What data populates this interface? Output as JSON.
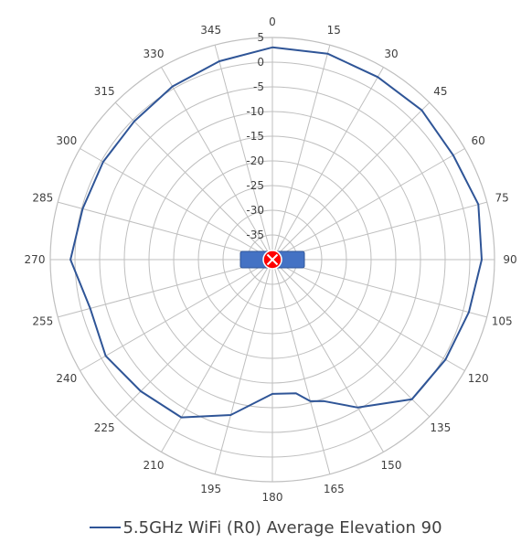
{
  "chart_data": {
    "type": "polar-line",
    "title": "",
    "angle_unit": "degrees",
    "angle_ticks": [
      0,
      15,
      30,
      45,
      60,
      75,
      90,
      105,
      120,
      135,
      150,
      165,
      180,
      195,
      210,
      225,
      240,
      255,
      270,
      285,
      300,
      315,
      330,
      345
    ],
    "radial_ticks": [
      -35,
      -30,
      -25,
      -20,
      -15,
      -10,
      -5,
      0,
      5
    ],
    "radial_range": [
      -40,
      5
    ],
    "grid": true,
    "legend_position": "bottom",
    "colors": {
      "series": "#2f5597",
      "grid": "#bfbfbf",
      "device_body": "#4472c4",
      "marker": "#ff0000"
    },
    "series": [
      {
        "name": "5.5GHz WiFi (R0) Average Elevation 90",
        "angles": [
          0,
          15,
          30,
          45,
          60,
          75,
          90,
          105,
          120,
          135,
          150,
          160,
          165,
          170,
          180,
          195,
          210,
          225,
          240,
          255,
          270,
          285,
          300,
          315,
          330,
          345,
          360
        ],
        "values": [
          3.0,
          3.2,
          2.7,
          2.8,
          2.3,
          3.2,
          2.4,
          1.2,
          0.5,
          0.0,
          -5.4,
          -9.5,
          -10.3,
          -12.5,
          -12.8,
          -7.4,
          -3.1,
          -2.3,
          -1.0,
          -1.8,
          0.9,
          -0.2,
          -0.4,
          -0.4,
          0.5,
          1.6,
          3.0
        ]
      }
    ]
  }
}
